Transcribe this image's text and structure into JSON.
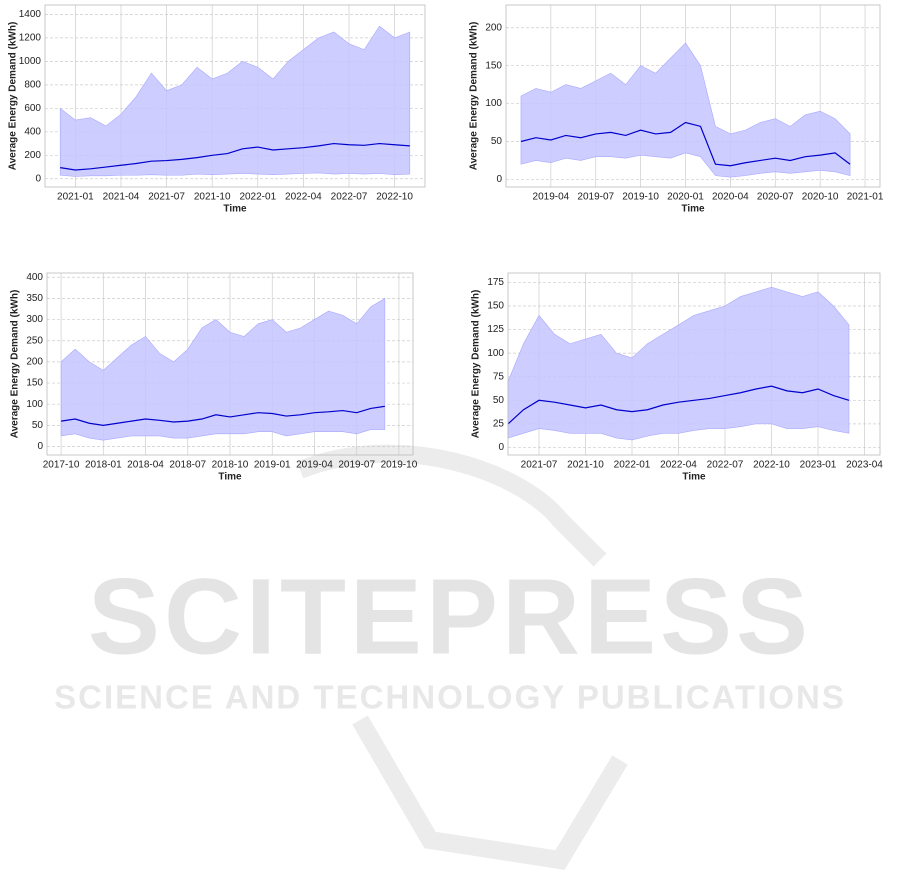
{
  "watermark": {
    "title": "SCITEPRESS",
    "subtitle": "SCIENCE AND TECHNOLOGY PUBLICATIONS"
  },
  "chart_data": [
    {
      "type": "line",
      "x_label": "Time",
      "y_label": "Average Energy Demand (kWh)",
      "grid": true,
      "x": [
        "2020-12",
        "2021-01",
        "2021-02",
        "2021-03",
        "2021-04",
        "2021-05",
        "2021-06",
        "2021-07",
        "2021-08",
        "2021-09",
        "2021-10",
        "2021-11",
        "2021-12",
        "2022-01",
        "2022-02",
        "2022-03",
        "2022-04",
        "2022-05",
        "2022-06",
        "2022-07",
        "2022-08",
        "2022-09",
        "2022-10",
        "2022-11"
      ],
      "xlim": [
        "2020-11",
        "2022-12"
      ],
      "xticks": [
        "2021-01",
        "2021-04",
        "2021-07",
        "2021-10",
        "2022-01",
        "2022-04",
        "2022-07",
        "2022-10"
      ],
      "ylim": [
        -70,
        1480
      ],
      "yticks": [
        0,
        200,
        400,
        600,
        800,
        1000,
        1200,
        1400
      ],
      "band": {
        "color": "#c4c4ff",
        "upper": [
          600,
          500,
          520,
          450,
          550,
          700,
          900,
          750,
          800,
          950,
          850,
          900,
          1000,
          950,
          850,
          1000,
          1100,
          1200,
          1250,
          1150,
          1100,
          1300,
          1200,
          1250
        ],
        "lower": [
          30,
          20,
          25,
          25,
          30,
          30,
          35,
          30,
          30,
          40,
          35,
          40,
          45,
          40,
          35,
          40,
          45,
          50,
          40,
          45,
          40,
          45,
          35,
          40
        ]
      },
      "series": [
        {
          "color": "#0000cc",
          "values": [
            95,
            75,
            85,
            100,
            115,
            130,
            150,
            155,
            165,
            180,
            200,
            215,
            255,
            270,
            245,
            255,
            265,
            280,
            300,
            290,
            285,
            300,
            290,
            280
          ]
        }
      ]
    },
    {
      "type": "line",
      "x_label": "Time",
      "y_label": "Average Energy Demand (kWh)",
      "grid": true,
      "x": [
        "2019-02",
        "2019-03",
        "2019-04",
        "2019-05",
        "2019-06",
        "2019-07",
        "2019-08",
        "2019-09",
        "2019-10",
        "2019-11",
        "2019-12",
        "2020-01",
        "2020-02",
        "2020-03",
        "2020-04",
        "2020-05",
        "2020-06",
        "2020-07",
        "2020-08",
        "2020-09",
        "2020-10",
        "2020-11",
        "2020-12"
      ],
      "xlim": [
        "2019-01",
        "2021-02"
      ],
      "xticks": [
        "2019-04",
        "2019-07",
        "2019-10",
        "2020-01",
        "2020-04",
        "2020-07",
        "2020-10",
        "2021-01"
      ],
      "ylim": [
        -10,
        230
      ],
      "yticks": [
        0,
        50,
        100,
        150,
        200
      ],
      "band": {
        "color": "#c4c4ff",
        "upper": [
          110,
          120,
          115,
          125,
          120,
          130,
          140,
          125,
          150,
          140,
          160,
          180,
          150,
          70,
          60,
          65,
          75,
          80,
          70,
          85,
          90,
          80,
          60
        ],
        "lower": [
          20,
          25,
          22,
          28,
          25,
          30,
          30,
          28,
          32,
          30,
          28,
          35,
          30,
          5,
          3,
          5,
          8,
          10,
          8,
          10,
          12,
          10,
          5
        ]
      },
      "series": [
        {
          "color": "#0000cc",
          "values": [
            50,
            55,
            52,
            58,
            55,
            60,
            62,
            58,
            65,
            60,
            62,
            75,
            70,
            20,
            18,
            22,
            25,
            28,
            25,
            30,
            32,
            35,
            20
          ]
        }
      ]
    },
    {
      "type": "line",
      "x_label": "Time",
      "y_label": "Average Energy Demand (kWh)",
      "grid": true,
      "x": [
        "2017-10",
        "2017-11",
        "2017-12",
        "2018-01",
        "2018-02",
        "2018-03",
        "2018-04",
        "2018-05",
        "2018-06",
        "2018-07",
        "2018-08",
        "2018-09",
        "2018-10",
        "2018-11",
        "2018-12",
        "2019-01",
        "2019-02",
        "2019-03",
        "2019-04",
        "2019-05",
        "2019-06",
        "2019-07",
        "2019-08",
        "2019-09"
      ],
      "xlim": [
        "2017-09",
        "2019-11"
      ],
      "xticks": [
        "2017-10",
        "2018-01",
        "2018-04",
        "2018-07",
        "2018-10",
        "2019-01",
        "2019-04",
        "2019-07",
        "2019-10"
      ],
      "ylim": [
        -20,
        410
      ],
      "yticks": [
        0,
        50,
        100,
        150,
        200,
        250,
        300,
        350,
        400
      ],
      "band": {
        "color": "#c4c4ff",
        "upper": [
          200,
          230,
          200,
          180,
          210,
          240,
          260,
          220,
          200,
          230,
          280,
          300,
          270,
          260,
          290,
          300,
          270,
          280,
          300,
          320,
          310,
          290,
          330,
          350
        ],
        "lower": [
          25,
          30,
          20,
          15,
          20,
          25,
          25,
          25,
          20,
          20,
          25,
          30,
          30,
          30,
          35,
          35,
          25,
          30,
          35,
          35,
          35,
          30,
          40,
          40
        ]
      },
      "series": [
        {
          "color": "#0000cc",
          "values": [
            60,
            65,
            55,
            50,
            55,
            60,
            65,
            62,
            58,
            60,
            65,
            75,
            70,
            75,
            80,
            78,
            72,
            75,
            80,
            82,
            85,
            80,
            90,
            95
          ]
        }
      ]
    },
    {
      "type": "line",
      "x_label": "Time",
      "y_label": "Average Energy Demand (kWh)",
      "grid": true,
      "x": [
        "2021-05",
        "2021-06",
        "2021-07",
        "2021-08",
        "2021-09",
        "2021-10",
        "2021-11",
        "2021-12",
        "2022-01",
        "2022-02",
        "2022-03",
        "2022-04",
        "2022-05",
        "2022-06",
        "2022-07",
        "2022-08",
        "2022-09",
        "2022-10",
        "2022-11",
        "2022-12",
        "2023-01",
        "2023-02",
        "2023-03"
      ],
      "xlim": [
        "2021-05",
        "2023-05"
      ],
      "xticks": [
        "2021-07",
        "2021-10",
        "2022-01",
        "2022-04",
        "2022-07",
        "2022-10",
        "2023-01",
        "2023-04"
      ],
      "ylim": [
        -8,
        185
      ],
      "yticks": [
        0,
        25,
        50,
        75,
        100,
        125,
        150,
        175
      ],
      "band": {
        "color": "#c4c4ff",
        "upper": [
          70,
          110,
          140,
          120,
          110,
          115,
          120,
          100,
          95,
          110,
          120,
          130,
          140,
          145,
          150,
          160,
          165,
          170,
          165,
          160,
          165,
          150,
          130
        ],
        "lower": [
          10,
          15,
          20,
          18,
          15,
          15,
          15,
          10,
          8,
          12,
          15,
          15,
          18,
          20,
          20,
          22,
          25,
          25,
          20,
          20,
          22,
          18,
          15
        ]
      },
      "series": [
        {
          "color": "#0000cc",
          "values": [
            25,
            40,
            50,
            48,
            45,
            42,
            45,
            40,
            38,
            40,
            45,
            48,
            50,
            52,
            55,
            58,
            62,
            65,
            60,
            58,
            62,
            55,
            50
          ]
        }
      ]
    }
  ]
}
